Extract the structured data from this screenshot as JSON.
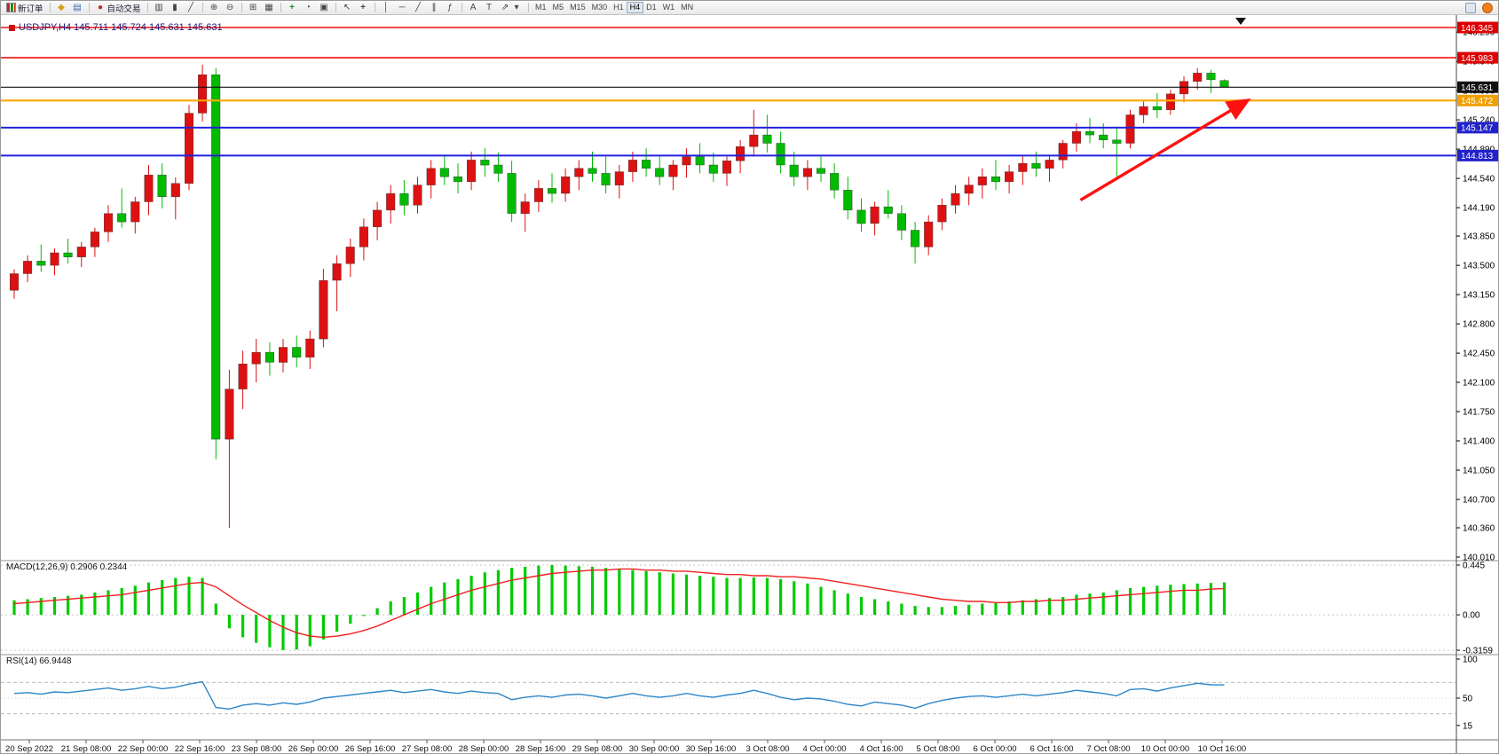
{
  "toolbar": {
    "new_order_label": "新订单",
    "auto_trading_label": "自动交易",
    "timeframes": [
      "M1",
      "M5",
      "M15",
      "M30",
      "H1",
      "H4",
      "D1",
      "W1",
      "MN"
    ],
    "active_timeframe": "H4"
  },
  "icons": {
    "charts": "◆",
    "market_watch": "▤",
    "auto_trading_dot": "●",
    "bar_chart": "▥",
    "candles": "▮",
    "line_chart": "╱",
    "zoom_in": "⊕",
    "zoom_out": "⊖",
    "tile": "⊞",
    "grid": "▦",
    "indicators": "+",
    "periods": "◔",
    "templates": "▣",
    "cursor": "↖",
    "crosshair": "+",
    "vline": "│",
    "hline": "─",
    "trendline": "╱",
    "channel": "∥",
    "fibo": "ƒ",
    "text": "A",
    "label": "T",
    "shapes": "⇗",
    "dropdown": "▾"
  },
  "chart": {
    "title": "USDJPY,H4 145.711 145.724 145.631 145.631",
    "symbol": "USDJPY",
    "period": "H4"
  },
  "chart_data": [
    {
      "type": "candlestick",
      "title": "USDJPY,H4",
      "ohlc": {
        "open": 145.711,
        "high": 145.724,
        "low": 145.631,
        "close": 145.631
      },
      "ylim": [
        140.01,
        146.345
      ],
      "up_color": "#dd1111",
      "down_color": "#00bb00",
      "y_ticks": [
        146.29,
        145.94,
        145.59,
        145.24,
        144.89,
        144.54,
        144.19,
        143.85,
        143.5,
        143.15,
        142.8,
        142.45,
        142.1,
        141.75,
        141.4,
        141.05,
        140.7,
        140.36,
        140.01
      ],
      "x_labels": [
        "20 Sep 2022",
        "21 Sep 08:00",
        "22 Sep 00:00",
        "22 Sep 16:00",
        "23 Sep 08:00",
        "26 Sep 00:00",
        "26 Sep 16:00",
        "27 Sep 08:00",
        "28 Sep 00:00",
        "28 Sep 16:00",
        "29 Sep 08:00",
        "30 Sep 00:00",
        "30 Sep 16:00",
        "3 Oct 08:00",
        "4 Oct 00:00",
        "4 Oct 16:00",
        "5 Oct 08:00",
        "6 Oct 00:00",
        "6 Oct 16:00",
        "7 Oct 08:00",
        "10 Oct 00:00",
        "10 Oct 16:00"
      ],
      "hlines": [
        {
          "price": 146.345,
          "label": "146.345",
          "color": "#ee1111",
          "badge": "#dd0000",
          "width": 1.6
        },
        {
          "price": 145.983,
          "label": "145.983",
          "color": "#ee1111",
          "badge": "#dd0000",
          "width": 1.6
        },
        {
          "price": 145.631,
          "label": "145.631",
          "color": "#111111",
          "badge": "#111111",
          "width": 1.2
        },
        {
          "price": 145.472,
          "label": "145.472",
          "color": "#ffa800",
          "badge": "#f0a000",
          "width": 2.2
        },
        {
          "price": 145.147,
          "label": "145.147",
          "color": "#2222dd",
          "badge": "#2222cc",
          "width": 2.0
        },
        {
          "price": 144.813,
          "label": "144.813",
          "color": "#2222dd",
          "badge": "#2222cc",
          "width": 2.0
        }
      ],
      "arrow": {
        "from_index": 79.3,
        "from_price": 144.28,
        "to_index": 91.5,
        "to_price": 145.45,
        "color": "#ff1111"
      },
      "candles": [
        [
          143.2,
          143.45,
          143.1,
          143.4
        ],
        [
          143.4,
          143.62,
          143.3,
          143.55
        ],
        [
          143.55,
          143.75,
          143.42,
          143.5
        ],
        [
          143.5,
          143.7,
          143.38,
          143.65
        ],
        [
          143.65,
          143.82,
          143.52,
          143.6
        ],
        [
          143.6,
          143.78,
          143.48,
          143.72
        ],
        [
          143.72,
          143.95,
          143.6,
          143.9
        ],
        [
          143.9,
          144.22,
          143.78,
          144.12
        ],
        [
          144.12,
          144.42,
          143.95,
          144.02
        ],
        [
          144.02,
          144.32,
          143.88,
          144.26
        ],
        [
          144.26,
          144.7,
          144.1,
          144.58
        ],
        [
          144.58,
          144.72,
          144.18,
          144.32
        ],
        [
          144.32,
          144.55,
          144.05,
          144.48
        ],
        [
          144.48,
          145.42,
          144.4,
          145.32
        ],
        [
          145.32,
          145.9,
          145.22,
          145.78
        ],
        [
          145.78,
          145.86,
          141.18,
          141.42
        ],
        [
          141.42,
          142.25,
          140.36,
          142.02
        ],
        [
          142.02,
          142.48,
          141.78,
          142.32
        ],
        [
          142.32,
          142.62,
          142.1,
          142.46
        ],
        [
          142.46,
          142.58,
          142.18,
          142.34
        ],
        [
          142.34,
          142.62,
          142.22,
          142.52
        ],
        [
          142.52,
          142.66,
          142.28,
          142.4
        ],
        [
          142.4,
          142.72,
          142.26,
          142.62
        ],
        [
          142.62,
          143.46,
          142.52,
          143.32
        ],
        [
          143.32,
          143.62,
          142.95,
          143.52
        ],
        [
          143.52,
          143.82,
          143.36,
          143.72
        ],
        [
          143.72,
          144.06,
          143.56,
          143.96
        ],
        [
          143.96,
          144.26,
          143.8,
          144.16
        ],
        [
          144.16,
          144.46,
          144.0,
          144.36
        ],
        [
          144.36,
          144.52,
          144.1,
          144.22
        ],
        [
          144.22,
          144.56,
          144.12,
          144.46
        ],
        [
          144.46,
          144.76,
          144.3,
          144.66
        ],
        [
          144.66,
          144.82,
          144.46,
          144.56
        ],
        [
          144.56,
          144.72,
          144.36,
          144.5
        ],
        [
          144.5,
          144.86,
          144.4,
          144.76
        ],
        [
          144.76,
          144.9,
          144.56,
          144.7
        ],
        [
          144.7,
          144.85,
          144.5,
          144.6
        ],
        [
          144.6,
          144.75,
          144.02,
          144.12
        ],
        [
          144.12,
          144.36,
          143.9,
          144.26
        ],
        [
          144.26,
          144.52,
          144.14,
          144.42
        ],
        [
          144.42,
          144.6,
          144.25,
          144.36
        ],
        [
          144.36,
          144.66,
          144.26,
          144.56
        ],
        [
          144.56,
          144.76,
          144.4,
          144.66
        ],
        [
          144.66,
          144.86,
          144.5,
          144.6
        ],
        [
          144.6,
          144.8,
          144.36,
          144.46
        ],
        [
          144.46,
          144.7,
          144.3,
          144.62
        ],
        [
          144.62,
          144.86,
          144.5,
          144.76
        ],
        [
          144.76,
          144.9,
          144.56,
          144.66
        ],
        [
          144.66,
          144.8,
          144.46,
          144.56
        ],
        [
          144.56,
          144.76,
          144.4,
          144.7
        ],
        [
          144.7,
          144.9,
          144.55,
          144.8
        ],
        [
          144.8,
          144.96,
          144.6,
          144.7
        ],
        [
          144.7,
          144.85,
          144.5,
          144.6
        ],
        [
          144.6,
          144.8,
          144.45,
          144.75
        ],
        [
          144.75,
          145.0,
          144.6,
          144.92
        ],
        [
          144.92,
          145.36,
          144.8,
          145.06
        ],
        [
          145.06,
          145.3,
          144.85,
          144.96
        ],
        [
          144.96,
          145.1,
          144.6,
          144.7
        ],
        [
          144.7,
          144.86,
          144.45,
          144.56
        ],
        [
          144.56,
          144.76,
          144.4,
          144.66
        ],
        [
          144.66,
          144.8,
          144.5,
          144.6
        ],
        [
          144.6,
          144.72,
          144.3,
          144.4
        ],
        [
          144.4,
          144.56,
          144.05,
          144.16
        ],
        [
          144.16,
          144.3,
          143.9,
          144.0
        ],
        [
          144.0,
          144.26,
          143.86,
          144.2
        ],
        [
          144.2,
          144.4,
          144.06,
          144.12
        ],
        [
          144.12,
          144.22,
          143.8,
          143.92
        ],
        [
          143.92,
          144.02,
          143.52,
          143.72
        ],
        [
          143.72,
          144.1,
          143.62,
          144.02
        ],
        [
          144.02,
          144.3,
          143.92,
          144.22
        ],
        [
          144.22,
          144.46,
          144.12,
          144.36
        ],
        [
          144.36,
          144.56,
          144.22,
          144.46
        ],
        [
          144.46,
          144.66,
          144.3,
          144.56
        ],
        [
          144.56,
          144.76,
          144.4,
          144.5
        ],
        [
          144.5,
          144.7,
          144.36,
          144.62
        ],
        [
          144.62,
          144.82,
          144.46,
          144.72
        ],
        [
          144.72,
          144.86,
          144.56,
          144.66
        ],
        [
          144.66,
          144.82,
          144.5,
          144.76
        ],
        [
          144.76,
          145.0,
          144.66,
          144.96
        ],
        [
          144.96,
          145.2,
          144.86,
          145.1
        ],
        [
          145.1,
          145.26,
          144.96,
          145.06
        ],
        [
          145.06,
          145.2,
          144.9,
          145.0
        ],
        [
          145.0,
          145.16,
          144.56,
          144.96
        ],
        [
          144.96,
          145.36,
          144.9,
          145.3
        ],
        [
          145.3,
          145.46,
          145.2,
          145.4
        ],
        [
          145.4,
          145.56,
          145.26,
          145.36
        ],
        [
          145.36,
          145.6,
          145.3,
          145.55
        ],
        [
          145.55,
          145.76,
          145.45,
          145.7
        ],
        [
          145.7,
          145.86,
          145.6,
          145.8
        ],
        [
          145.8,
          145.84,
          145.56,
          145.72
        ],
        [
          145.711,
          145.724,
          145.631,
          145.631
        ]
      ]
    },
    {
      "type": "bar",
      "name": "MACD",
      "label": "MACD(12,26,9) 0.2906 0.2344",
      "ymax": 0.445,
      "ymin": -0.3159,
      "hist_color": "#00cc00",
      "signal_color": "#ee2222",
      "y_ticks": [
        {
          "label": "0.445",
          "value": 0.445
        },
        {
          "label": "0.00",
          "value": 0
        },
        {
          "label": "-0.3159",
          "value": -0.3159
        }
      ],
      "values": [
        0.13,
        0.14,
        0.15,
        0.16,
        0.17,
        0.18,
        0.2,
        0.22,
        0.24,
        0.26,
        0.29,
        0.31,
        0.33,
        0.34,
        0.33,
        0.1,
        -0.12,
        -0.2,
        -0.25,
        -0.29,
        -0.315,
        -0.31,
        -0.28,
        -0.22,
        -0.15,
        -0.08,
        -0.01,
        0.06,
        0.12,
        0.16,
        0.2,
        0.25,
        0.29,
        0.32,
        0.35,
        0.38,
        0.4,
        0.42,
        0.43,
        0.44,
        0.445,
        0.44,
        0.435,
        0.43,
        0.42,
        0.41,
        0.4,
        0.39,
        0.38,
        0.37,
        0.36,
        0.35,
        0.34,
        0.33,
        0.33,
        0.335,
        0.33,
        0.32,
        0.3,
        0.28,
        0.25,
        0.22,
        0.19,
        0.16,
        0.14,
        0.12,
        0.1,
        0.08,
        0.07,
        0.07,
        0.08,
        0.09,
        0.1,
        0.11,
        0.12,
        0.13,
        0.14,
        0.15,
        0.16,
        0.18,
        0.19,
        0.2,
        0.22,
        0.24,
        0.25,
        0.26,
        0.27,
        0.275,
        0.28,
        0.285,
        0.2906
      ],
      "signal": [
        0.1,
        0.11,
        0.12,
        0.13,
        0.14,
        0.15,
        0.16,
        0.17,
        0.18,
        0.2,
        0.22,
        0.24,
        0.26,
        0.28,
        0.29,
        0.25,
        0.17,
        0.09,
        0.02,
        -0.05,
        -0.11,
        -0.16,
        -0.19,
        -0.2,
        -0.19,
        -0.17,
        -0.14,
        -0.1,
        -0.05,
        0.0,
        0.05,
        0.1,
        0.14,
        0.18,
        0.22,
        0.25,
        0.28,
        0.31,
        0.33,
        0.35,
        0.37,
        0.38,
        0.39,
        0.4,
        0.4,
        0.41,
        0.41,
        0.4,
        0.4,
        0.39,
        0.39,
        0.38,
        0.37,
        0.36,
        0.36,
        0.35,
        0.35,
        0.34,
        0.34,
        0.33,
        0.32,
        0.3,
        0.28,
        0.26,
        0.24,
        0.22,
        0.2,
        0.18,
        0.16,
        0.14,
        0.13,
        0.12,
        0.12,
        0.11,
        0.11,
        0.12,
        0.12,
        0.13,
        0.13,
        0.14,
        0.15,
        0.16,
        0.17,
        0.18,
        0.19,
        0.2,
        0.21,
        0.22,
        0.22,
        0.23,
        0.2344
      ]
    },
    {
      "type": "line",
      "name": "RSI",
      "label": "RSI(14) 66.9448",
      "ymin": 0,
      "ymax": 100,
      "color": "#2e86c8",
      "levels": [
        70,
        30
      ],
      "y_ticks": [
        {
          "label": "100",
          "value": 100
        },
        {
          "label": "50",
          "value": 50
        },
        {
          "label": "15",
          "value": 15
        }
      ],
      "values": [
        56,
        57,
        55,
        58,
        57,
        59,
        61,
        63,
        60,
        62,
        65,
        62,
        64,
        68,
        71,
        38,
        36,
        41,
        43,
        41,
        44,
        42,
        45,
        50,
        52,
        54,
        56,
        58,
        60,
        57,
        59,
        61,
        58,
        56,
        59,
        57,
        56,
        48,
        51,
        53,
        51,
        54,
        55,
        53,
        50,
        53,
        56,
        53,
        51,
        53,
        56,
        53,
        51,
        54,
        56,
        60,
        56,
        51,
        48,
        50,
        49,
        46,
        42,
        40,
        45,
        43,
        41,
        37,
        43,
        47,
        50,
        52,
        53,
        51,
        53,
        55,
        53,
        55,
        57,
        60,
        58,
        56,
        53,
        61,
        62,
        59,
        63,
        66,
        69,
        67,
        66.9
      ]
    }
  ]
}
